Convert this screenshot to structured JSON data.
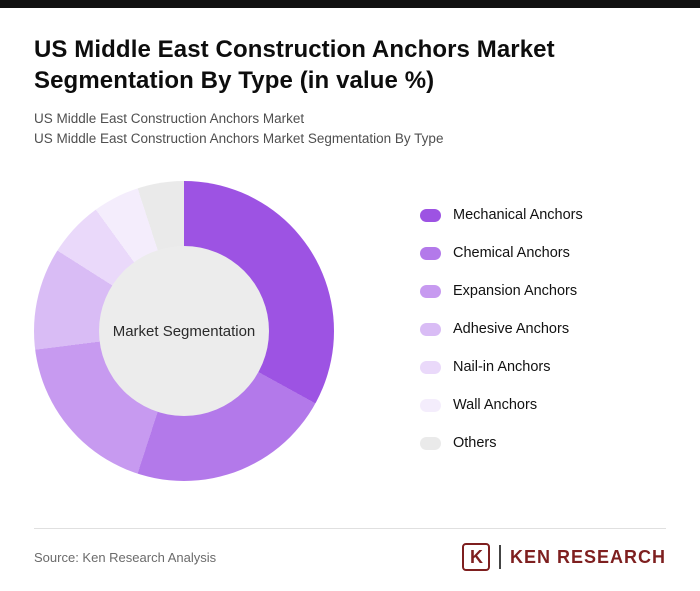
{
  "header": {
    "title": "US Middle East Construction Anchors Market Segmentation By Type (in value %)",
    "subtitle1": "US Middle East Construction Anchors Market",
    "subtitle2": "US Middle East Construction Anchors Market Segmentation By Type"
  },
  "chart_data": {
    "type": "pie",
    "donut": true,
    "title": "US Middle East Construction Anchors Market Segmentation By Type (in value %)",
    "center_label": "Market Segmentation",
    "legend_position": "right",
    "categories": [
      "Mechanical Anchors",
      "Chemical Anchors",
      "Expansion Anchors",
      "Adhesive Anchors",
      "Nail-in Anchors",
      "Wall Anchors",
      "Others"
    ],
    "values": [
      33,
      22,
      18,
      11,
      6,
      5,
      5
    ],
    "colors": [
      "#9d53e3",
      "#b379ea",
      "#c79af0",
      "#d9bcf5",
      "#ead9fa",
      "#f4edfc",
      "#eaeaea"
    ]
  },
  "footer": {
    "source": "Source: Ken Research Analysis",
    "logo_letter": "K",
    "logo_text": "KEN RESEARCH"
  },
  "colors": {
    "topbar": "#111111",
    "accent": "#9d53e3",
    "donut_hole": "#ececec",
    "logo": "#7e1f1f"
  }
}
